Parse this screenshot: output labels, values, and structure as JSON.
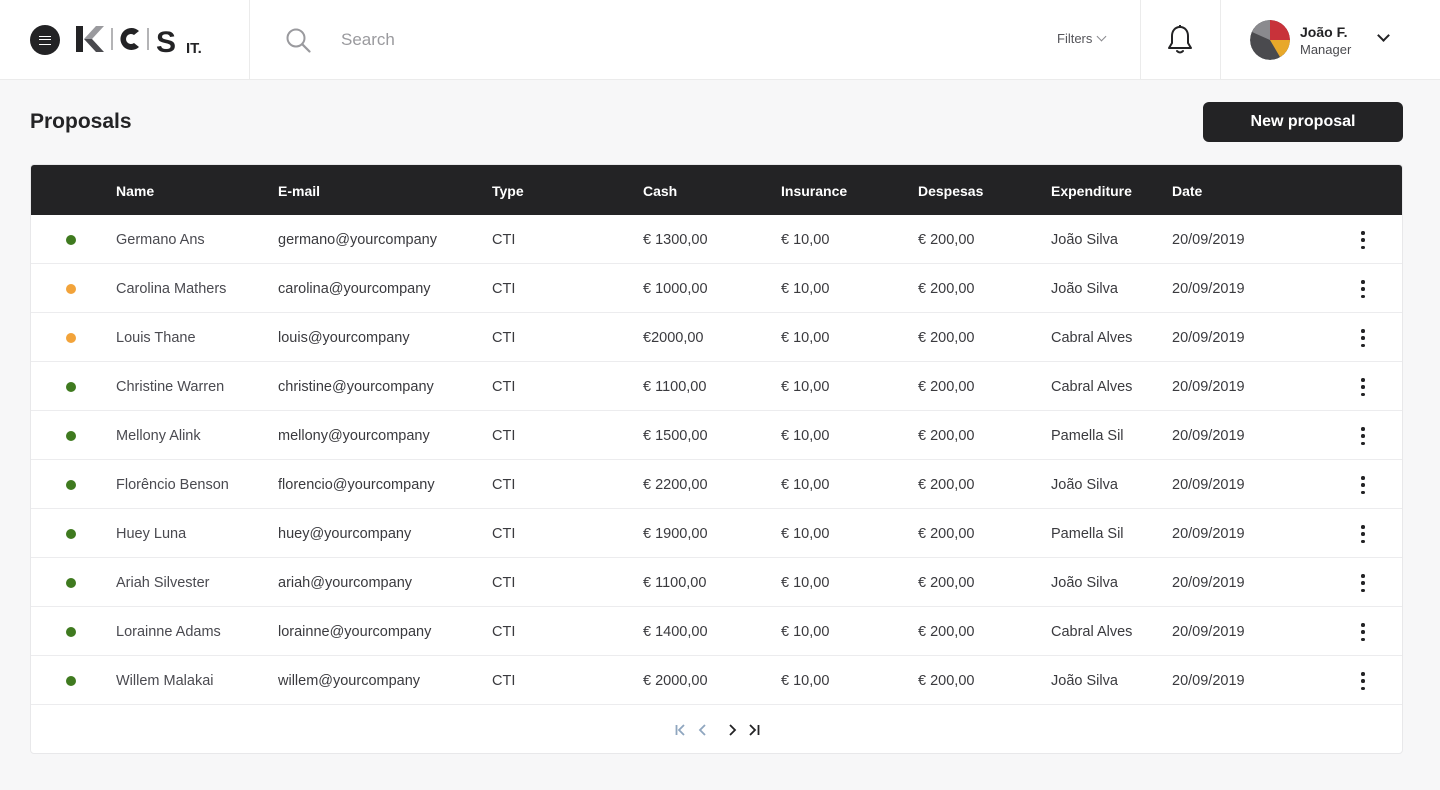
{
  "header": {
    "logo_text": "KCS IT.",
    "search_placeholder": "Search",
    "filters_label": "Filters",
    "user": {
      "name": "João F.",
      "role": "Manager"
    }
  },
  "page": {
    "title": "Proposals",
    "new_button_label": "New proposal"
  },
  "table": {
    "columns": [
      "Name",
      "E-mail",
      "Type",
      "Cash",
      "Insurance",
      "Despesas",
      "Expenditure",
      "Date"
    ],
    "rows": [
      {
        "status": "green",
        "name": "Germano Ans",
        "email": "germano@yourcompany",
        "type": "CTI",
        "cash": "€ 1300,00",
        "insurance": "€ 10,00",
        "despesas": "€ 200,00",
        "expenditure": "João Silva",
        "date": "20/09/2019"
      },
      {
        "status": "orange",
        "name": "Carolina Mathers",
        "email": "carolina@yourcompany",
        "type": "CTI",
        "cash": "€ 1000,00",
        "insurance": "€ 10,00",
        "despesas": "€ 200,00",
        "expenditure": "João Silva",
        "date": "20/09/2019"
      },
      {
        "status": "orange",
        "name": "Louis Thane",
        "email": "louis@yourcompany",
        "type": "CTI",
        "cash": "€2000,00",
        "insurance": "€ 10,00",
        "despesas": "€ 200,00",
        "expenditure": "Cabral Alves",
        "date": "20/09/2019"
      },
      {
        "status": "green",
        "name": "Christine Warren",
        "email": "christine@yourcompany",
        "type": "CTI",
        "cash": "€ 1100,00",
        "insurance": "€ 10,00",
        "despesas": "€ 200,00",
        "expenditure": "Cabral Alves",
        "date": "20/09/2019"
      },
      {
        "status": "green",
        "name": "Mellony Alink",
        "email": "mellony@yourcompany",
        "type": "CTI",
        "cash": "€ 1500,00",
        "insurance": "€ 10,00",
        "despesas": "€ 200,00",
        "expenditure": "Pamella Sil",
        "date": "20/09/2019"
      },
      {
        "status": "green",
        "name": "Florêncio Benson",
        "email": "florencio@yourcompany",
        "type": "CTI",
        "cash": "€ 2200,00",
        "insurance": "€ 10,00",
        "despesas": "€ 200,00",
        "expenditure": "João Silva",
        "date": "20/09/2019"
      },
      {
        "status": "green",
        "name": "Huey Luna",
        "email": "huey@yourcompany",
        "type": "CTI",
        "cash": "€ 1900,00",
        "insurance": "€ 10,00",
        "despesas": "€ 200,00",
        "expenditure": "Pamella Sil",
        "date": "20/09/2019"
      },
      {
        "status": "green",
        "name": "Ariah Silvester",
        "email": "ariah@yourcompany",
        "type": "CTI",
        "cash": "€ 1100,00",
        "insurance": "€ 10,00",
        "despesas": "€ 200,00",
        "expenditure": "João Silva",
        "date": "20/09/2019"
      },
      {
        "status": "green",
        "name": "Lorainne Adams",
        "email": "lorainne@yourcompany",
        "type": "CTI",
        "cash": "€ 1400,00",
        "insurance": "€ 10,00",
        "despesas": "€ 200,00",
        "expenditure": "Cabral Alves",
        "date": "20/09/2019"
      },
      {
        "status": "green",
        "name": "Willem Malakai",
        "email": "willem@yourcompany",
        "type": "CTI",
        "cash": "€ 2000,00",
        "insurance": "€ 10,00",
        "despesas": "€ 200,00",
        "expenditure": "João Silva",
        "date": "20/09/2019"
      }
    ]
  },
  "colors": {
    "dark": "#232325",
    "status_green": "#3f7a1f",
    "status_orange": "#f2a33a",
    "pager_disabled": "#8fa6bf"
  },
  "icons": [
    "menu-icon",
    "search-icon",
    "chevron-down-icon",
    "bell-icon",
    "more-vertical-icon",
    "first-page-icon",
    "prev-page-icon",
    "next-page-icon",
    "last-page-icon"
  ]
}
